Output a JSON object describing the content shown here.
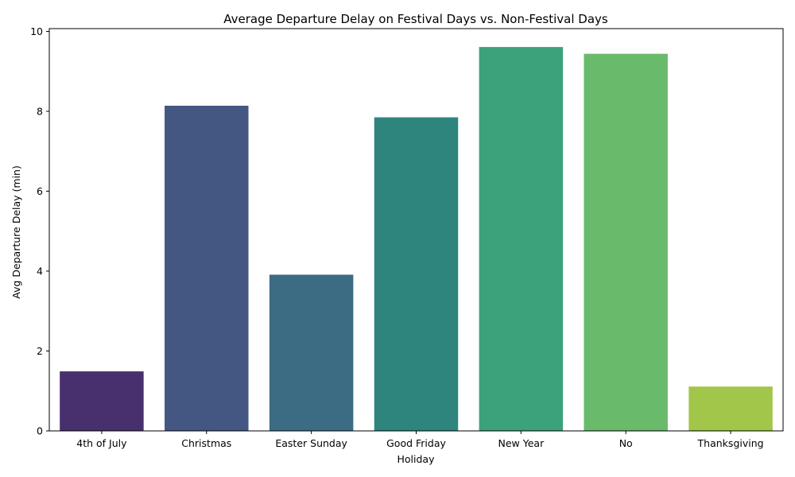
{
  "chart_data": {
    "type": "bar",
    "title": "Average Departure Delay on Festival Days vs. Non-Festival Days",
    "xlabel": "Holiday",
    "ylabel": "Avg Departure Delay (min)",
    "categories": [
      "4th of July",
      "Christmas",
      "Easter Sunday",
      "Good Friday",
      "New Year",
      "No",
      "Thanksgiving"
    ],
    "values": [
      1.49,
      8.14,
      3.91,
      7.85,
      9.61,
      9.44,
      1.11
    ],
    "colors": [
      "#48306e",
      "#445682",
      "#3b6c84",
      "#2e857e",
      "#3ca27c",
      "#6aba6c",
      "#a1c64a"
    ],
    "ylim": [
      0,
      10.07
    ],
    "yticks": [
      0,
      2,
      4,
      6,
      8,
      10
    ],
    "grid": false,
    "legend": "none"
  }
}
